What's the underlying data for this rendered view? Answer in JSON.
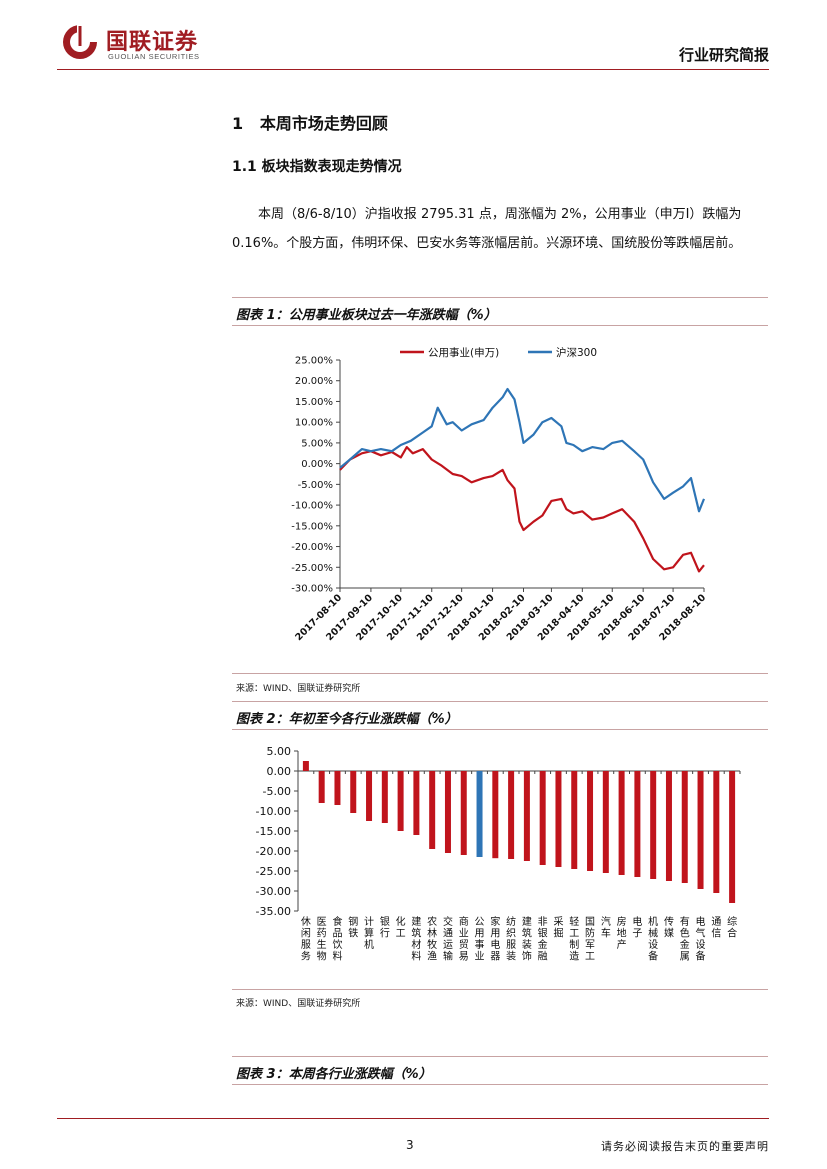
{
  "header": {
    "company_cn": "国联证券",
    "company_en": "GUOLIAN SECURITIES",
    "report_type": "行业研究简报",
    "brand_color": "#a01d22"
  },
  "section": {
    "h1": "1   本周市场走势回顾",
    "h2": "1.1 板块指数表现走势情况",
    "paragraph": "本周（8/6-8/10）沪指收报 2795.31 点，周涨幅为 2%，公用事业（申万Ⅰ）跌幅为 0.16%。个股方面，伟明环保、巴安水务等涨幅居前。兴源环境、国统股份等跌幅居前。"
  },
  "figures": [
    {
      "title": "图表 1：公用事业板块过去一年涨跌幅（%）",
      "source": "来源：WIND、国联证券研究所"
    },
    {
      "title": "图表 2：年初至今各行业涨跌幅（%）",
      "source": "来源：WIND、国联证券研究所"
    },
    {
      "title": "图表 3：本周各行业涨跌幅（%）"
    }
  ],
  "chart_data": [
    {
      "type": "line",
      "legend_position": "top",
      "ylim": [
        -30,
        25
      ],
      "y_ticks": [
        "25.00%",
        "20.00%",
        "15.00%",
        "10.00%",
        "5.00%",
        "0.00%",
        "-5.00%",
        "-10.00%",
        "-15.00%",
        "-20.00%",
        "-25.00%",
        "-30.00%"
      ],
      "x_ticks": [
        "2017-08-10",
        "2017-09-10",
        "2017-10-10",
        "2017-11-10",
        "2017-12-10",
        "2018-01-10",
        "2018-02-10",
        "2018-03-10",
        "2018-04-10",
        "2018-05-10",
        "2018-06-10",
        "2018-07-10",
        "2018-08-10"
      ],
      "series": [
        {
          "name": "公用事业(申万)",
          "color": "#c0141c",
          "points": [
            [
              "2017-08-10",
              -1.5
            ],
            [
              "2017-08-20",
              1.0
            ],
            [
              "2017-09-01",
              2.5
            ],
            [
              "2017-09-10",
              3.0
            ],
            [
              "2017-09-20",
              2.0
            ],
            [
              "2017-10-01",
              2.8
            ],
            [
              "2017-10-10",
              1.5
            ],
            [
              "2017-10-16",
              4.0
            ],
            [
              "2017-10-22",
              2.5
            ],
            [
              "2017-11-01",
              3.5
            ],
            [
              "2017-11-10",
              1.0
            ],
            [
              "2017-11-20",
              -0.5
            ],
            [
              "2017-12-01",
              -2.5
            ],
            [
              "2017-12-10",
              -3.0
            ],
            [
              "2017-12-20",
              -4.5
            ],
            [
              "2018-01-01",
              -3.5
            ],
            [
              "2018-01-10",
              -3.0
            ],
            [
              "2018-01-20",
              -1.5
            ],
            [
              "2018-01-25",
              -4.0
            ],
            [
              "2018-02-01",
              -6.0
            ],
            [
              "2018-02-06",
              -14.0
            ],
            [
              "2018-02-10",
              -16.0
            ],
            [
              "2018-02-20",
              -14.0
            ],
            [
              "2018-03-01",
              -12.5
            ],
            [
              "2018-03-10",
              -9.0
            ],
            [
              "2018-03-20",
              -8.5
            ],
            [
              "2018-03-25",
              -11.0
            ],
            [
              "2018-04-01",
              -12.0
            ],
            [
              "2018-04-10",
              -11.5
            ],
            [
              "2018-04-20",
              -13.5
            ],
            [
              "2018-05-01",
              -13.0
            ],
            [
              "2018-05-10",
              -12.0
            ],
            [
              "2018-05-20",
              -11.0
            ],
            [
              "2018-06-01",
              -14.0
            ],
            [
              "2018-06-10",
              -18.0
            ],
            [
              "2018-06-20",
              -23.0
            ],
            [
              "2018-07-01",
              -25.5
            ],
            [
              "2018-07-10",
              -25.0
            ],
            [
              "2018-07-20",
              -22.0
            ],
            [
              "2018-07-28",
              -21.5
            ],
            [
              "2018-08-05",
              -26.0
            ],
            [
              "2018-08-10",
              -24.5
            ]
          ]
        },
        {
          "name": "沪深300",
          "color": "#2e75b6",
          "points": [
            [
              "2017-08-10",
              -1.0
            ],
            [
              "2017-08-20",
              1.0
            ],
            [
              "2017-09-01",
              3.5
            ],
            [
              "2017-09-10",
              3.0
            ],
            [
              "2017-09-20",
              3.5
            ],
            [
              "2017-10-01",
              3.0
            ],
            [
              "2017-10-10",
              4.5
            ],
            [
              "2017-10-20",
              5.5
            ],
            [
              "2017-11-01",
              7.5
            ],
            [
              "2017-11-10",
              9.0
            ],
            [
              "2017-11-16",
              13.5
            ],
            [
              "2017-11-25",
              9.5
            ],
            [
              "2017-12-01",
              10.0
            ],
            [
              "2017-12-10",
              8.0
            ],
            [
              "2017-12-20",
              9.5
            ],
            [
              "2018-01-01",
              10.5
            ],
            [
              "2018-01-10",
              13.5
            ],
            [
              "2018-01-20",
              16.0
            ],
            [
              "2018-01-25",
              18.0
            ],
            [
              "2018-02-01",
              15.5
            ],
            [
              "2018-02-06",
              10.0
            ],
            [
              "2018-02-10",
              5.0
            ],
            [
              "2018-02-20",
              7.0
            ],
            [
              "2018-03-01",
              10.0
            ],
            [
              "2018-03-10",
              11.0
            ],
            [
              "2018-03-20",
              9.0
            ],
            [
              "2018-03-25",
              5.0
            ],
            [
              "2018-04-01",
              4.5
            ],
            [
              "2018-04-10",
              3.0
            ],
            [
              "2018-04-20",
              4.0
            ],
            [
              "2018-05-01",
              3.5
            ],
            [
              "2018-05-10",
              5.0
            ],
            [
              "2018-05-20",
              5.5
            ],
            [
              "2018-06-01",
              3.0
            ],
            [
              "2018-06-10",
              1.0
            ],
            [
              "2018-06-20",
              -4.5
            ],
            [
              "2018-07-01",
              -8.5
            ],
            [
              "2018-07-10",
              -7.0
            ],
            [
              "2018-07-20",
              -5.5
            ],
            [
              "2018-07-28",
              -3.5
            ],
            [
              "2018-08-05",
              -11.5
            ],
            [
              "2018-08-10",
              -8.5
            ]
          ]
        }
      ]
    },
    {
      "type": "bar",
      "ylim": [
        -35,
        5
      ],
      "y_ticks": [
        "5.00",
        "0.00",
        "-5.00",
        "-10.00",
        "-15.00",
        "-20.00",
        "-25.00",
        "-30.00",
        "-35.00"
      ],
      "bar_color": "#c0141c",
      "highlight_color": "#2e75b6",
      "highlight_category": "公用事业",
      "categories": [
        "休闲服务",
        "医药生物",
        "食品饮料",
        "钢铁",
        "计算机",
        "银行",
        "化工",
        "建筑材料",
        "农林牧渔",
        "交通运输",
        "商业贸易",
        "公用事业",
        "家用电器",
        "纺织服装",
        "建筑装饰",
        "非银金融",
        "采掘",
        "轻工制造",
        "国防军工",
        "汽车",
        "房地产",
        "电子",
        "机械设备",
        "传媒",
        "有色金属",
        "电气设备",
        "通信",
        "综合"
      ],
      "values": [
        2.5,
        -8.0,
        -8.5,
        -10.5,
        -12.5,
        -13.0,
        -15.0,
        -16.0,
        -19.5,
        -20.5,
        -21.0,
        -21.5,
        -21.8,
        -22.0,
        -22.5,
        -23.5,
        -24.0,
        -24.5,
        -25.0,
        -25.5,
        -26.0,
        -26.5,
        -27.0,
        -27.5,
        -28.0,
        -29.5,
        -30.5,
        -33.0
      ]
    }
  ],
  "footer": {
    "page_number": "3",
    "disclaimer": "请务必阅读报告末页的重要声明"
  }
}
